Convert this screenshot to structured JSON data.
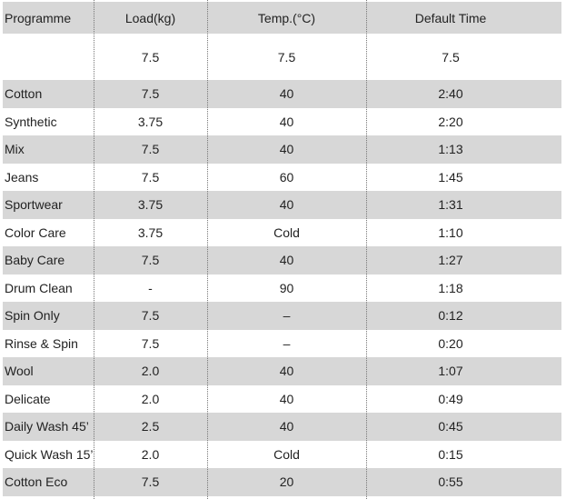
{
  "table": {
    "header": [
      "Programme",
      "Load(kg)",
      "Temp.(°C)",
      "Default Time"
    ],
    "subheader": [
      "7.5",
      "7.5",
      "7.5"
    ],
    "rows": [
      [
        "Cotton",
        "7.5",
        "40",
        "2:40"
      ],
      [
        "Synthetic",
        "3.75",
        "40",
        "2:20"
      ],
      [
        "Mix",
        "7.5",
        "40",
        "1:13"
      ],
      [
        "Jeans",
        "7.5",
        "60",
        "1:45"
      ],
      [
        "Sportwear",
        "3.75",
        "40",
        "1:31"
      ],
      [
        "Color Care",
        "3.75",
        "Cold",
        "1:10"
      ],
      [
        "Baby Care",
        "7.5",
        "40",
        "1:27"
      ],
      [
        "Drum Clean",
        "-",
        "90",
        "1:18"
      ],
      [
        "Spin Only",
        "7.5",
        "–",
        "0:12"
      ],
      [
        "Rinse & Spin",
        "7.5",
        "–",
        "0:20"
      ],
      [
        "Wool",
        "2.0",
        "40",
        "1:07"
      ],
      [
        "Delicate",
        "2.0",
        "40",
        "0:49"
      ],
      [
        "Daily Wash 45’",
        "2.5",
        "40",
        "0:45"
      ],
      [
        "Quick Wash 15’",
        "2.0",
        "Cold",
        "0:15"
      ],
      [
        "Cotton Eco",
        "7.5",
        "20",
        "0:55"
      ]
    ]
  }
}
